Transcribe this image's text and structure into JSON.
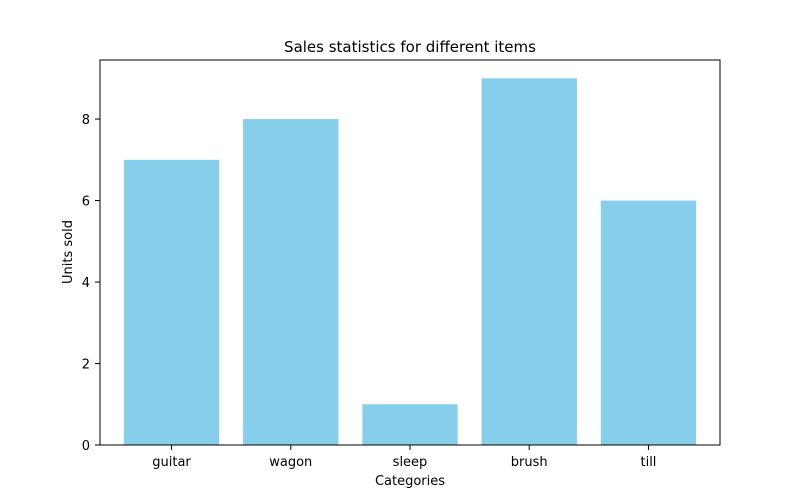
{
  "chart_data": {
    "type": "bar",
    "title": "Sales statistics for different items",
    "xlabel": "Categories",
    "ylabel": "Units sold",
    "categories": [
      "guitar",
      "wagon",
      "sleep",
      "brush",
      "till"
    ],
    "values": [
      7,
      8,
      1,
      9,
      6
    ],
    "ylim": [
      0,
      9.45
    ],
    "yticks": [
      0,
      2,
      4,
      6,
      8
    ],
    "bar_color": "#87ceeb",
    "grid": false,
    "legend": "none"
  }
}
